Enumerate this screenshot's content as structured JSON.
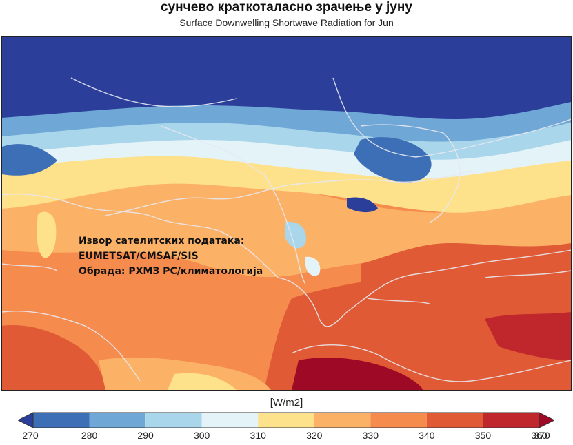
{
  "title": "сунчево краткоталасно зрачење у јуну",
  "subtitle": "Surface Downwelling Shortwave Radiation for Jun",
  "overlay": {
    "line1": "Извор сателитских података:",
    "line2": "EUMETSAT/CMSAF/SIS",
    "line3": "Обрада: РХМЗ РС/климатологија"
  },
  "colorbar": {
    "unit": "[W/m2]",
    "ticks": [
      "270",
      "280",
      "290",
      "300",
      "310",
      "320",
      "330",
      "340",
      "350",
      "360",
      "370"
    ],
    "colors": [
      "#2b3f9a",
      "#3d6fb6",
      "#6fa7d6",
      "#a9d6ea",
      "#e3f3f8",
      "#fde18b",
      "#fbb267",
      "#f58b4c",
      "#e05a35",
      "#c0272d",
      "#9e0a26"
    ]
  },
  "map": {
    "colors": {
      "ocean_background": "#f58b4c",
      "borders": "#e8e8f0"
    }
  }
}
